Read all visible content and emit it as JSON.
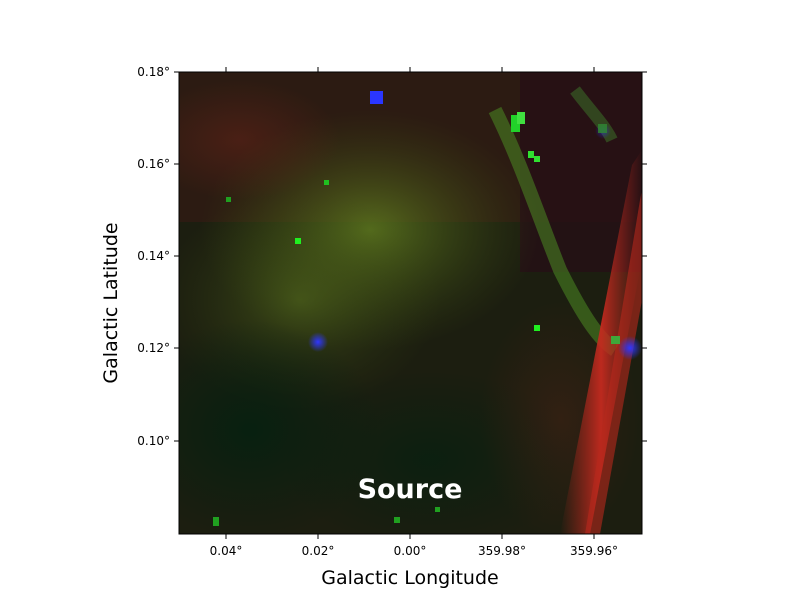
{
  "figure": {
    "xlabel": "Galactic Longitude",
    "ylabel": "Galactic Latitude",
    "overlay_label": "Source",
    "x_ticks": [
      "0.04°",
      "0.02°",
      "0.00°",
      "359.98°",
      "359.96°"
    ],
    "y_ticks": [
      "0.18°",
      "0.16°",
      "0.14°",
      "0.12°",
      "0.10°"
    ]
  }
}
